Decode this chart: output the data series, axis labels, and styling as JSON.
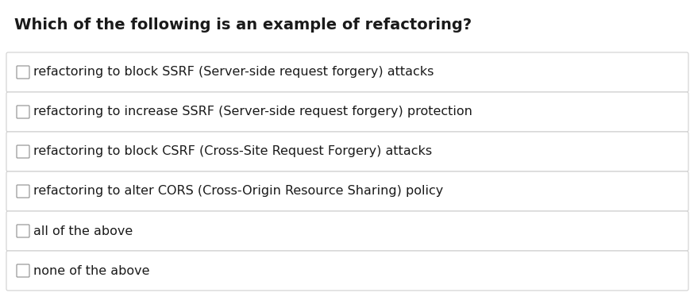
{
  "title": "Which of the following is an example of refactoring?",
  "options": [
    "refactoring to block SSRF (Server-side request forgery) attacks",
    "refactoring to increase SSRF (Server-side request forgery) protection",
    "refactoring to block CSRF (Cross-Site Request Forgery) attacks",
    "refactoring to alter CORS (Cross-Origin Resource Sharing) policy",
    "all of the above",
    "none of the above"
  ],
  "bg_color": "#ffffff",
  "option_bg_color": "#ffffff",
  "option_border_color": "#d0d0d0",
  "title_color": "#1a1a1a",
  "option_text_color": "#1a1a1a",
  "checkbox_color": "#ffffff",
  "checkbox_border_color": "#999999",
  "title_fontsize": 14.0,
  "option_fontsize": 11.5,
  "fig_width": 8.69,
  "fig_height": 3.88,
  "dpi": 100
}
